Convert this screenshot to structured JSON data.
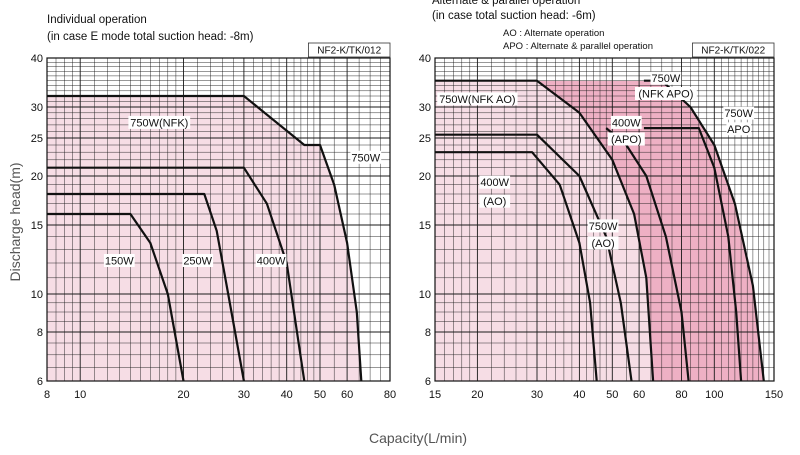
{
  "axes": {
    "ylabel": "Discharge head(m)",
    "xlabel": "Capacity(L/min)"
  },
  "chart_data": [
    {
      "type": "area",
      "title": "Individual operation",
      "subtitle": "(in case E mode total suction head: -8m)",
      "model": "NF2-K/TK/012",
      "xscale": "log",
      "yscale": "log",
      "xlim": [
        8,
        80
      ],
      "ylim": [
        6,
        40
      ],
      "xticks": [
        8,
        10,
        20,
        30,
        40,
        50,
        60,
        80
      ],
      "yticks": [
        6,
        8,
        10,
        15,
        20,
        25,
        30,
        40
      ],
      "grid": true,
      "colors": {
        "fill": "#f6dde5",
        "curve": "#111111",
        "grid": "#1a1a1a"
      },
      "series": [
        {
          "name": "150W",
          "points": [
            [
              8,
              16
            ],
            [
              14,
              16
            ],
            [
              16,
              13.5
            ],
            [
              18,
              10
            ],
            [
              20,
              6
            ]
          ]
        },
        {
          "name": "250W",
          "points": [
            [
              8,
              18
            ],
            [
              23,
              18
            ],
            [
              25,
              14.5
            ],
            [
              27,
              10
            ],
            [
              30,
              6
            ]
          ]
        },
        {
          "name": "400W",
          "points": [
            [
              8,
              21
            ],
            [
              30,
              21
            ],
            [
              35,
              17
            ],
            [
              40,
              12
            ],
            [
              45,
              6
            ]
          ]
        },
        {
          "name": "750W(NFK)",
          "points": [
            [
              8,
              32
            ],
            [
              30,
              32
            ],
            [
              45,
              24
            ],
            [
              50,
              24
            ],
            [
              55,
              19
            ],
            [
              60,
              13.5
            ],
            [
              64,
              9
            ],
            [
              66,
              6
            ]
          ]
        }
      ],
      "labels": [
        {
          "text": "750W(NFK)",
          "x": 17,
          "y": 27
        },
        {
          "text": "750W",
          "x": 68,
          "y": 22
        },
        {
          "text": "150W",
          "x": 13,
          "y": 12
        },
        {
          "text": "250W",
          "x": 22,
          "y": 12
        },
        {
          "text": "400W",
          "x": 36,
          "y": 12
        }
      ]
    },
    {
      "type": "area",
      "title": "Alternate & parallel operation",
      "subtitle": "(in case total suction head: -6m)",
      "legend_notes": [
        "AO : Alternate operation",
        "APO : Alternate & parallel operation"
      ],
      "model": "NF2-K/TK/022",
      "xscale": "log",
      "yscale": "log",
      "xlim": [
        15,
        150
      ],
      "ylim": [
        6,
        40
      ],
      "xticks": [
        15,
        20,
        30,
        40,
        50,
        60,
        80,
        100,
        150
      ],
      "yticks": [
        6,
        8,
        10,
        15,
        20,
        25,
        30,
        40
      ],
      "grid": true,
      "colors": {
        "fill": "#f6dde5",
        "fill_apo": "#eeb0c4",
        "curve": "#111111",
        "grid": "#1a1a1a"
      },
      "series": [
        {
          "name": "400W (AO)",
          "points": [
            [
              15,
              23
            ],
            [
              29,
              23
            ],
            [
              35,
              19
            ],
            [
              40,
              13.5
            ],
            [
              43,
              9.5
            ],
            [
              45,
              6
            ]
          ]
        },
        {
          "name": "750W (AO)",
          "points": [
            [
              15,
              25.5
            ],
            [
              30,
              25.5
            ],
            [
              40,
              20
            ],
            [
              48,
              14
            ],
            [
              53,
              9.5
            ],
            [
              57,
              6
            ]
          ]
        },
        {
          "name": "750W(NFK AO)",
          "points": [
            [
              15,
              35
            ],
            [
              30,
              35
            ],
            [
              40,
              29
            ],
            [
              50,
              22
            ],
            [
              58,
              16
            ],
            [
              63,
              11
            ],
            [
              66,
              6
            ]
          ]
        },
        {
          "name": "400W (APO)",
          "points": [
            [
              48,
              26.5
            ],
            [
              55,
              24
            ],
            [
              63,
              20
            ],
            [
              72,
              14
            ],
            [
              80,
              9
            ],
            [
              84,
              6
            ]
          ]
        },
        {
          "name": "750W (APO)",
          "points": [
            [
              62,
              26.5
            ],
            [
              90,
              26.5
            ],
            [
              100,
              21
            ],
            [
              110,
              14
            ],
            [
              116,
              9
            ],
            [
              120,
              6
            ]
          ]
        },
        {
          "name": "750W (NFK APO)",
          "points": [
            [
              62,
              35
            ],
            [
              70,
              35
            ],
            [
              85,
              30
            ],
            [
              100,
              24
            ],
            [
              115,
              17
            ],
            [
              130,
              10.5
            ],
            [
              140,
              6
            ]
          ]
        }
      ],
      "labels": [
        {
          "text": "750W(NFK AO)",
          "x": 20,
          "y": 31
        },
        {
          "text": "400W",
          "x": 22.5,
          "y": 19
        },
        {
          "text": "(AO)",
          "x": 22.5,
          "y": 17
        },
        {
          "text": "400W",
          "x": 55,
          "y": 27
        },
        {
          "text": "(APO)",
          "x": 55,
          "y": 24.5
        },
        {
          "text": "750W",
          "x": 47,
          "y": 14.7
        },
        {
          "text": "(AO)",
          "x": 47,
          "y": 13.3
        },
        {
          "text": "750W",
          "x": 72,
          "y": 35
        },
        {
          "text": "(NFK APO)",
          "x": 72,
          "y": 32
        },
        {
          "text": "750W",
          "x": 118,
          "y": 28.5
        },
        {
          "text": "APO",
          "x": 118,
          "y": 26
        }
      ]
    }
  ]
}
